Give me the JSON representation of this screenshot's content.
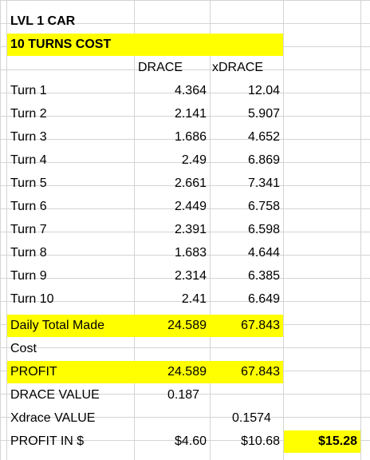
{
  "sheet": {
    "title": "LVL 1 CAR",
    "subtitle": "10 TURNS COST",
    "headers": {
      "drace": "DRACE",
      "xdrace": "xDRACE"
    },
    "turns": [
      {
        "label": "Turn 1",
        "drace": "4.364",
        "xdrace": "12.04"
      },
      {
        "label": "Turn 2",
        "drace": "2.141",
        "xdrace": "5.907"
      },
      {
        "label": "Turn 3",
        "drace": "1.686",
        "xdrace": "4.652"
      },
      {
        "label": "Turn 4",
        "drace": "2.49",
        "xdrace": "6.869"
      },
      {
        "label": "Turn 5",
        "drace": "2.661",
        "xdrace": "7.341"
      },
      {
        "label": "Turn 6",
        "drace": "2.449",
        "xdrace": "6.758"
      },
      {
        "label": "Turn 7",
        "drace": "2.391",
        "xdrace": "6.598"
      },
      {
        "label": "Turn 8",
        "drace": "1.683",
        "xdrace": "4.644"
      },
      {
        "label": "Turn 9",
        "drace": "2.314",
        "xdrace": "6.385"
      },
      {
        "label": "Turn 10",
        "drace": "2.41",
        "xdrace": "6.649"
      }
    ],
    "daily_total": {
      "label": "Daily Total Made",
      "drace": "24.589",
      "xdrace": "67.843"
    },
    "cost": {
      "label": "Cost"
    },
    "profit": {
      "label": "PROFIT",
      "drace": "24.589",
      "xdrace": "67.843"
    },
    "drace_value": {
      "label": "DRACE VALUE",
      "value": "0.187"
    },
    "xdrace_value": {
      "label": "Xdrace VALUE",
      "value": "0.1574"
    },
    "profit_usd": {
      "label": "PROFIT IN $",
      "drace": "$4.60",
      "xdrace": "$10.68",
      "total": "$15.28"
    },
    "colors": {
      "highlight": "#ffff00",
      "grid": "#d4d4d4"
    }
  }
}
